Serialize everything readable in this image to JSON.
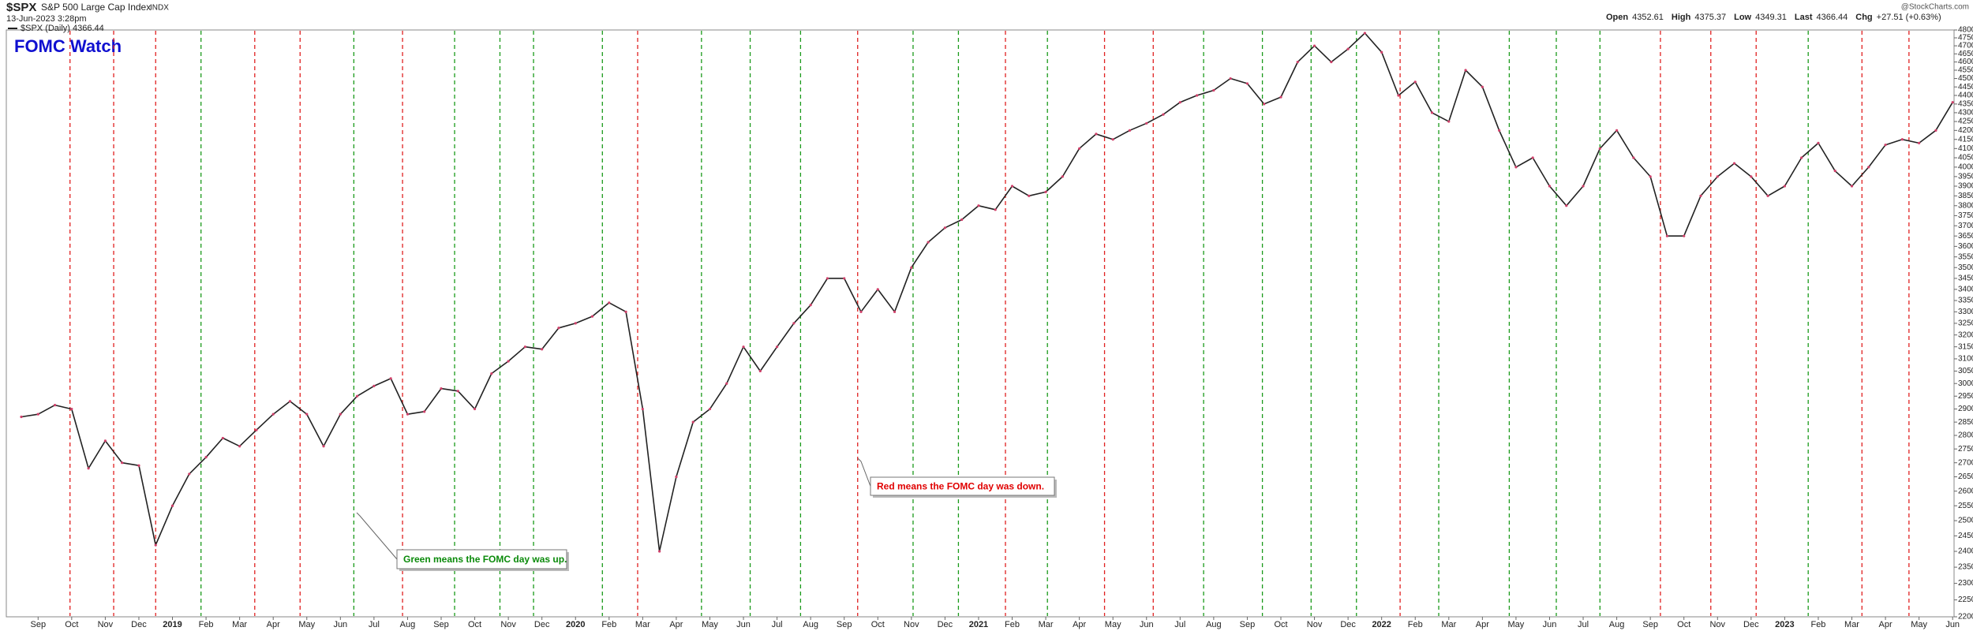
{
  "header": {
    "symbol": "$SPX",
    "name": "S&P 500 Large Cap Index",
    "exchange": "INDX",
    "timestamp": "13-Jun-2023 3:28pm",
    "watermark": "@StockCharts.com",
    "quote": [
      {
        "label": "Open",
        "value": 4352.61
      },
      {
        "label": "High",
        "value": 4375.37
      },
      {
        "label": "Low",
        "value": 4349.31
      },
      {
        "label": "Last",
        "value": 4366.44
      },
      {
        "label": "Chg",
        "value": "+27.51 (+0.63%)"
      }
    ]
  },
  "chart_data": {
    "type": "line",
    "title": "FOMC Watch",
    "title_color": "#1010d0",
    "log_scale": true,
    "categories": [
      null,
      "Sep",
      null,
      "Oct",
      null,
      "Nov",
      null,
      "Dec",
      null,
      "2019",
      null,
      "Feb",
      null,
      "Mar",
      null,
      "Apr",
      null,
      "May",
      null,
      "Jun",
      null,
      "Jul",
      null,
      "Aug",
      null,
      "Sep",
      null,
      "Oct",
      null,
      "Nov",
      null,
      "Dec",
      null,
      "2020",
      null,
      "Feb",
      null,
      "Mar",
      null,
      "Apr",
      null,
      "May",
      null,
      "Jun",
      null,
      "Jul",
      null,
      "Aug",
      null,
      "Sep",
      null,
      "Oct",
      null,
      "Nov",
      null,
      "Dec",
      null,
      "2021",
      null,
      "Feb",
      null,
      "Mar",
      null,
      "Apr",
      null,
      "May",
      null,
      "Jun",
      null,
      "Jul",
      null,
      "Aug",
      null,
      "Sep",
      null,
      "Oct",
      null,
      "Nov",
      null,
      "Dec",
      null,
      "2022",
      null,
      "Feb",
      null,
      "Mar",
      null,
      "Apr",
      null,
      "May",
      null,
      "Jun",
      null,
      "Jul",
      null,
      "Aug",
      null,
      "Sep",
      null,
      "Oct",
      null,
      "Nov",
      null,
      "Dec",
      null,
      "2023",
      null,
      "Feb",
      null,
      "Mar",
      null,
      "Apr",
      null,
      "May",
      null,
      "Jun"
    ],
    "series": [
      {
        "name": "$SPX (Daily) 4366.44",
        "color": "#222222",
        "values": [
          2870,
          2880,
          2915,
          2900,
          2680,
          2780,
          2700,
          2690,
          2420,
          2550,
          2660,
          2720,
          2790,
          2760,
          2820,
          2880,
          2930,
          2880,
          2760,
          2880,
          2950,
          2990,
          3020,
          2880,
          2890,
          2980,
          2970,
          2900,
          3040,
          3090,
          3150,
          3140,
          3230,
          3250,
          3280,
          3340,
          3300,
          2900,
          2400,
          2650,
          2850,
          2900,
          3000,
          3150,
          3050,
          3150,
          3250,
          3330,
          3450,
          3450,
          3300,
          3400,
          3300,
          3500,
          3620,
          3690,
          3730,
          3800,
          3780,
          3900,
          3850,
          3870,
          3950,
          4100,
          4180,
          4150,
          4200,
          4240,
          4290,
          4360,
          4400,
          4430,
          4500,
          4470,
          4350,
          4390,
          4600,
          4700,
          4600,
          4680,
          4780,
          4660,
          4400,
          4480,
          4300,
          4250,
          4550,
          4450,
          4200,
          4000,
          4050,
          3900,
          3800,
          3900,
          4100,
          4200,
          4050,
          3950,
          3650,
          3650,
          3850,
          3950,
          4020,
          3950,
          3850,
          3900,
          4050,
          4130,
          3980,
          3900,
          4000,
          4120,
          4150,
          4130,
          4200,
          4360
        ]
      }
    ],
    "ylim": [
      2200,
      4800
    ],
    "yticks": [
      2200,
      2250,
      2300,
      2350,
      2400,
      2450,
      2500,
      2550,
      2600,
      2650,
      2700,
      2750,
      2800,
      2850,
      2900,
      2950,
      3000,
      3050,
      3100,
      3150,
      3200,
      3250,
      3300,
      3350,
      3400,
      3450,
      3500,
      3550,
      3600,
      3650,
      3700,
      3750,
      3800,
      3850,
      3900,
      3950,
      4000,
      4050,
      4100,
      4150,
      4200,
      4250,
      4300,
      4350,
      4400,
      4450,
      4500,
      4550,
      4600,
      4650,
      4700,
      4750,
      4800
    ],
    "fomc": {
      "x": [
        2.9,
        5.5,
        8.0,
        10.7,
        13.9,
        16.6,
        19.8,
        22.7,
        25.8,
        28.5,
        30.5,
        34.6,
        36.7,
        40.5,
        43.4,
        46.4,
        49.8,
        53.1,
        55.8,
        58.6,
        61.1,
        64.5,
        67.4,
        70.4,
        73.9,
        76.8,
        79.5,
        82.1,
        84.4,
        88.6,
        91.4,
        94.0,
        97.6,
        100.6,
        103.3,
        106.4,
        109.6,
        112.4
      ],
      "colors": [
        "#e02020",
        "#e02020",
        "#e02020",
        "#1a9a1a",
        "#e02020",
        "#e02020",
        "#1a9a1a",
        "#e02020",
        "#1a9a1a",
        "#1a9a1a",
        "#1a9a1a",
        "#1a9a1a",
        "#e02020",
        "#1a9a1a",
        "#1a9a1a",
        "#1a9a1a",
        "#e02020",
        "#1a9a1a",
        "#1a9a1a",
        "#e02020",
        "#1a9a1a",
        "#e02020",
        "#e02020",
        "#1a9a1a",
        "#1a9a1a",
        "#1a9a1a",
        "#1a9a1a",
        "#e02020",
        "#1a9a1a",
        "#1a9a1a",
        "#1a9a1a",
        "#1a9a1a",
        "#e02020",
        "#e02020",
        "#e02020",
        "#1a9a1a",
        "#e02020",
        "#e02020"
      ]
    },
    "annotations": [
      {
        "text": "Green means the FOMC day was up.",
        "color": "#0a8a0a"
      },
      {
        "text": "Red means the FOMC day was down.",
        "color": "#e00000"
      }
    ]
  }
}
